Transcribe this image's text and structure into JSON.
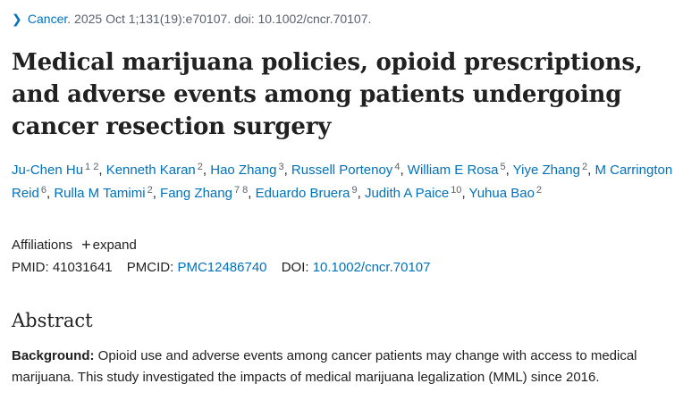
{
  "citation": {
    "journal": "Cancer",
    "details": ". 2025 Oct 1;131(19):e70107. doi: 10.1002/cncr.70107."
  },
  "icons": {
    "citation_chevron": "chevron-right-icon",
    "affiliations_expand": "plus-icon"
  },
  "colors": {
    "link": "#0071bc",
    "text": "#212121",
    "muted": "#5b616b"
  },
  "title": "Medical marijuana policies, opioid prescriptions, and adverse events among patients undergoing cancer resection surgery",
  "authors": [
    {
      "name": "Ju-Chen Hu",
      "aff": "1 2"
    },
    {
      "name": "Kenneth Karan",
      "aff": "2"
    },
    {
      "name": "Hao Zhang",
      "aff": "3"
    },
    {
      "name": "Russell Portenoy",
      "aff": "4"
    },
    {
      "name": "William E Rosa",
      "aff": "5"
    },
    {
      "name": "Yiye Zhang",
      "aff": "2"
    },
    {
      "name": "M Carrington Reid",
      "aff": "6"
    },
    {
      "name": "Rulla M Tamimi",
      "aff": "2"
    },
    {
      "name": "Fang Zhang",
      "aff": "7 8"
    },
    {
      "name": "Eduardo Bruera",
      "aff": "9"
    },
    {
      "name": "Judith A Paice",
      "aff": "10"
    },
    {
      "name": "Yuhua Bao",
      "aff": "2"
    }
  ],
  "affiliations": {
    "label": "Affiliations",
    "plus": "+",
    "expand": "expand"
  },
  "identifiers": {
    "pmid_label": "PMID:",
    "pmid": "41031641",
    "pmcid_label": "PMCID:",
    "pmcid": "PMC12486740",
    "doi_label": "DOI:",
    "doi": "10.1002/cncr.70107"
  },
  "abstract": {
    "heading": "Abstract",
    "background_label": "Background:",
    "background_text": " Opioid use and adverse events among cancer patients may change with access to medical marijuana. This study investigated the impacts of medical marijuana legalization (MML) since 2016."
  }
}
